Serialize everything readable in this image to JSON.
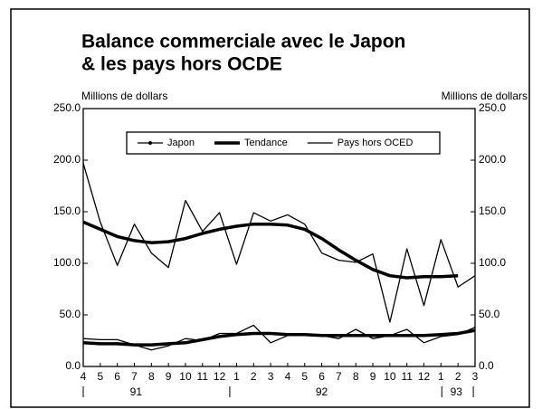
{
  "chart_data": {
    "type": "line",
    "title": [
      "Balance commerciale avec le Japon",
      "& les pays hors OCDE"
    ],
    "y_label": "Millions de dollars",
    "y2_label": "Millions de dollars",
    "categories": [
      "4",
      "5",
      "6",
      "7",
      "8",
      "9",
      "10",
      "11",
      "12",
      "1",
      "2",
      "3",
      "4",
      "5",
      "6",
      "7",
      "8",
      "9",
      "10",
      "11",
      "12",
      "1",
      "2",
      "3"
    ],
    "years": [
      "91",
      "92",
      "93"
    ],
    "ylim": [
      0,
      250
    ],
    "y2lim": [
      0,
      250
    ],
    "yticks": [
      {
        "value": 0,
        "label": "0.0"
      },
      {
        "value": 50,
        "label": "50.0"
      },
      {
        "value": 100,
        "label": "100.0"
      },
      {
        "value": 150,
        "label": "150.0"
      },
      {
        "value": 200,
        "label": "200.0"
      },
      {
        "value": 250,
        "label": "250.0"
      }
    ],
    "y2ticks": [
      {
        "value": 0,
        "label": "0.0"
      },
      {
        "value": 50,
        "label": "50.0"
      },
      {
        "value": 100,
        "label": "100.0"
      },
      {
        "value": 150,
        "label": "150.0"
      },
      {
        "value": 200,
        "label": "200.0"
      },
      {
        "value": 250,
        "label": "250.0"
      }
    ],
    "series": [
      {
        "name": "Japon",
        "color": "#000",
        "width": 1.3,
        "markers": true,
        "values": [
          197,
          140,
          98,
          138,
          110,
          96,
          161,
          131,
          149,
          99,
          149,
          141,
          147,
          138,
          110,
          103,
          101,
          109,
          43,
          114,
          59,
          123,
          77,
          88
        ]
      },
      {
        "name": "Tendance",
        "color": "#000",
        "width": 3.5,
        "values": [
          140,
          133,
          126,
          122,
          120,
          121,
          124,
          129,
          133,
          136,
          138,
          138,
          137,
          133,
          124,
          113,
          103,
          94,
          88,
          86,
          87,
          87,
          88,
          null
        ]
      },
      {
        "name": "Pays hors OCED",
        "color": "#000",
        "width": 1.3,
        "values": [
          27,
          26,
          26,
          21,
          16,
          20,
          27,
          25,
          32,
          32,
          40,
          23,
          30,
          30,
          30,
          27,
          36,
          27,
          30,
          36,
          23,
          29,
          31,
          38
        ]
      },
      {
        "color": "#000",
        "width": 3.5,
        "values": [
          23,
          22,
          22,
          21,
          21,
          22,
          23,
          26,
          29,
          31,
          32,
          32,
          31,
          31,
          30,
          30,
          30,
          30,
          30,
          30,
          30,
          31,
          32,
          35
        ]
      }
    ]
  }
}
